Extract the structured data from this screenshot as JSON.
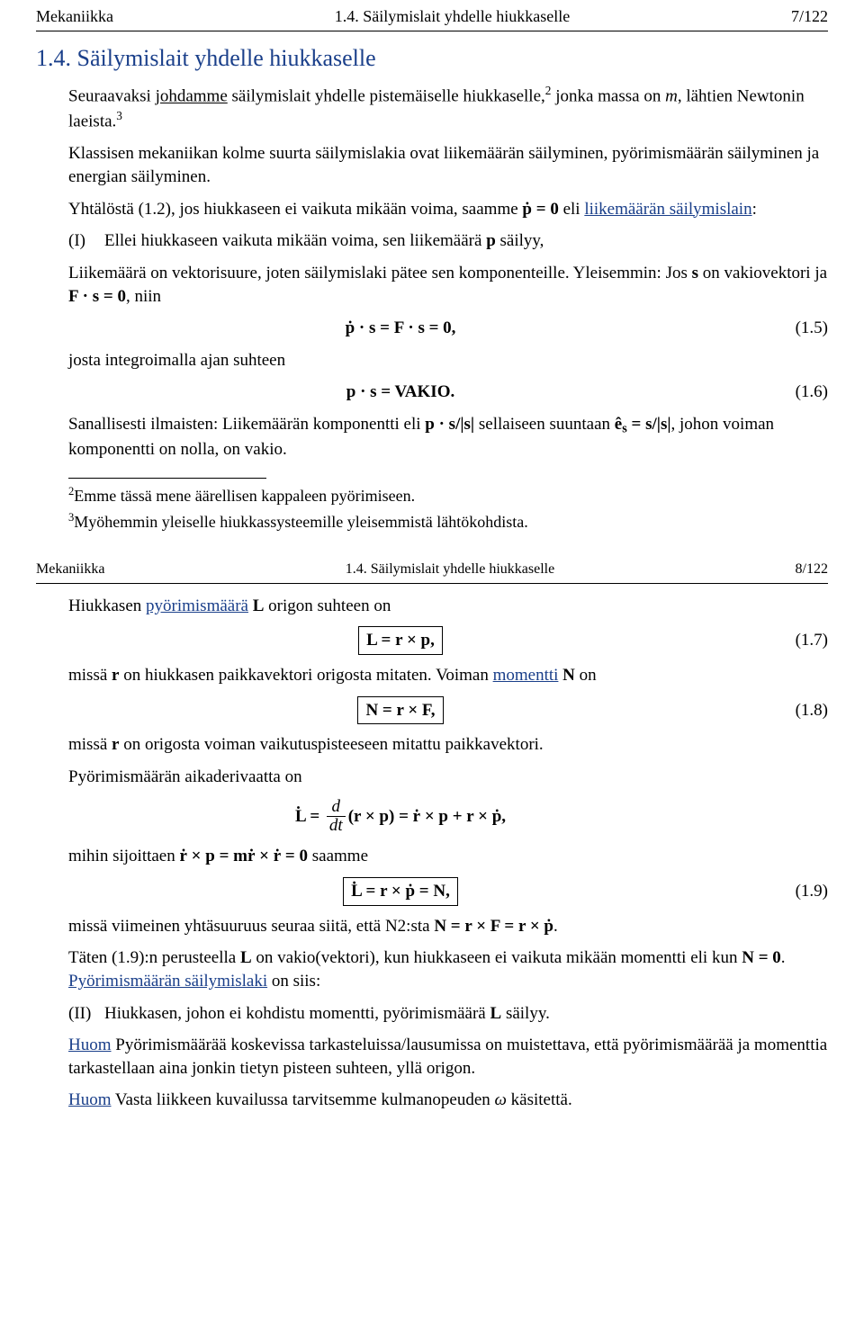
{
  "colors": {
    "link": "#1a3f8a",
    "text": "#000000",
    "bg": "#ffffff"
  },
  "slide7": {
    "header": {
      "left": "Mekaniikka",
      "center": "1.4. Säilymislait yhdelle hiukkaselle",
      "right": "7/122"
    },
    "title": "1.4. Säilymislait yhdelle hiukkaselle",
    "p1a": "Seuraavaksi ",
    "p1_link": "johdamme",
    "p1b": " säilymislait yhdelle pistemäiselle hiukkaselle,",
    "p1_sup": "2",
    "p1c": " jonka massa on ",
    "p1_m": "m",
    "p1d": ", lähtien Newtonin laeista.",
    "p1_sup2": "3",
    "p2": "Klassisen mekaniikan kolme suurta säilymislakia ovat liikemäärän säilyminen, pyörimismäärän säilyminen ja energian säilyminen.",
    "p3a": "Yhtälöstä (1.2), jos hiukkaseen ei vaikuta mikään voima, saamme ",
    "p3_eq": "ṗ = 0",
    "p3b": " eli ",
    "p3_link": "liikemäärän säilymislain",
    "p3c": ":",
    "law1_label": "(I)",
    "law1a": "Ellei hiukkaseen vaikuta mikään voima, sen liikemäärä ",
    "law1_p": "p",
    "law1b": " säilyy,",
    "p4a": "Liikemäärä on vektorisuure, joten säilymislaki pätee sen komponenteille. Yleisemmin: Jos ",
    "p4_s": "s",
    "p4b": " on vakiovektori ja ",
    "p4_eq": "F · s = 0",
    "p4c": ", niin",
    "eq15": "ṗ · s = F · s = 0,",
    "eq15_num": "(1.5)",
    "p5": "josta integroimalla ajan suhteen",
    "eq16": "p · s = VAKIO.",
    "eq16_num": "(1.6)",
    "p6a": "Sanallisesti ilmaisten: Liikemäärän komponentti eli ",
    "p6_eq1": "p · s/|s|",
    "p6b": " sellaiseen suuntaan ",
    "p6_eq2": "ê",
    "p6_eq2sub": "s",
    "p6_eq2b": " = s/|s|",
    "p6c": ", johon voiman komponentti on nolla, on vakio.",
    "fn2_sup": "2",
    "fn2": "Emme tässä mene äärellisen kappaleen pyörimiseen.",
    "fn3_sup": "3",
    "fn3": "Myöhemmin yleiselle hiukkassysteemille yleisemmistä lähtökohdista."
  },
  "slide8": {
    "header": {
      "left": "Mekaniikka",
      "center": "1.4. Säilymislait yhdelle hiukkaselle",
      "right": "8/122"
    },
    "p1a": "Hiukkasen ",
    "p1_link": "pyörimismäärä",
    "p1b": " ",
    "p1_L": "L",
    "p1c": " origon suhteen on",
    "eq17": "L = r × p,",
    "eq17_num": "(1.7)",
    "p2a": "missä ",
    "p2_r": "r",
    "p2b": " on hiukkasen paikkavektori origosta mitaten. Voiman ",
    "p2_link": "momentti",
    "p2c": " ",
    "p2_N": "N",
    "p2d": " on",
    "eq18": "N = r × F,",
    "eq18_num": "(1.8)",
    "p3a": "missä ",
    "p3_r": "r",
    "p3b": " on origosta voiman vaikutuspisteeseen mitattu paikkavektori.",
    "p4": "Pyörimismäärän aikaderivaatta on",
    "eq_mid_lhs": "L̇ = ",
    "eq_mid_num": "d",
    "eq_mid_den": "dt",
    "eq_mid_rhs": "(r × p) = ṙ × p + r × ṗ,",
    "p5a": "mihin sijoittaen ",
    "p5_eq": "ṙ × p = mṙ × ṙ = 0",
    "p5b": " saamme",
    "eq19": "L̇ = r × ṗ = N,",
    "eq19_num": "(1.9)",
    "p6a": "missä viimeinen yhtäsuuruus seuraa siitä, että N2:sta ",
    "p6_eq": "N = r × F = r × ṗ",
    "p6b": ".",
    "p7a": "Täten (1.9):n perusteella ",
    "p7_L": "L",
    "p7b": " on vakio(vektori), kun hiukkaseen ei vaikuta mikään momentti eli kun ",
    "p7_eq": "N = 0",
    "p7c": ". ",
    "p7_link": "Pyörimismäärän säilymislaki",
    "p7d": " on siis:",
    "law2_label": "(II)",
    "law2a": "Hiukkasen, johon ei kohdistu momentti, pyörimismäärä ",
    "law2_L": "L",
    "law2b": " säilyy.",
    "huom1_label": "Huom",
    "huom1": " Pyörimismäärää koskevissa tarkasteluissa/lausumissa on muis­tettava, että pyörimismäärää ja momenttia tarkastellaan aina jonkin tietyn pisteen suhteen, yllä origon.",
    "huom2_label": "Huom",
    "huom2a": " Vasta liikkeen kuvailussa tarvitsemme kulmanopeuden ",
    "huom2_w": "ω",
    "huom2b": " käsitettä."
  }
}
